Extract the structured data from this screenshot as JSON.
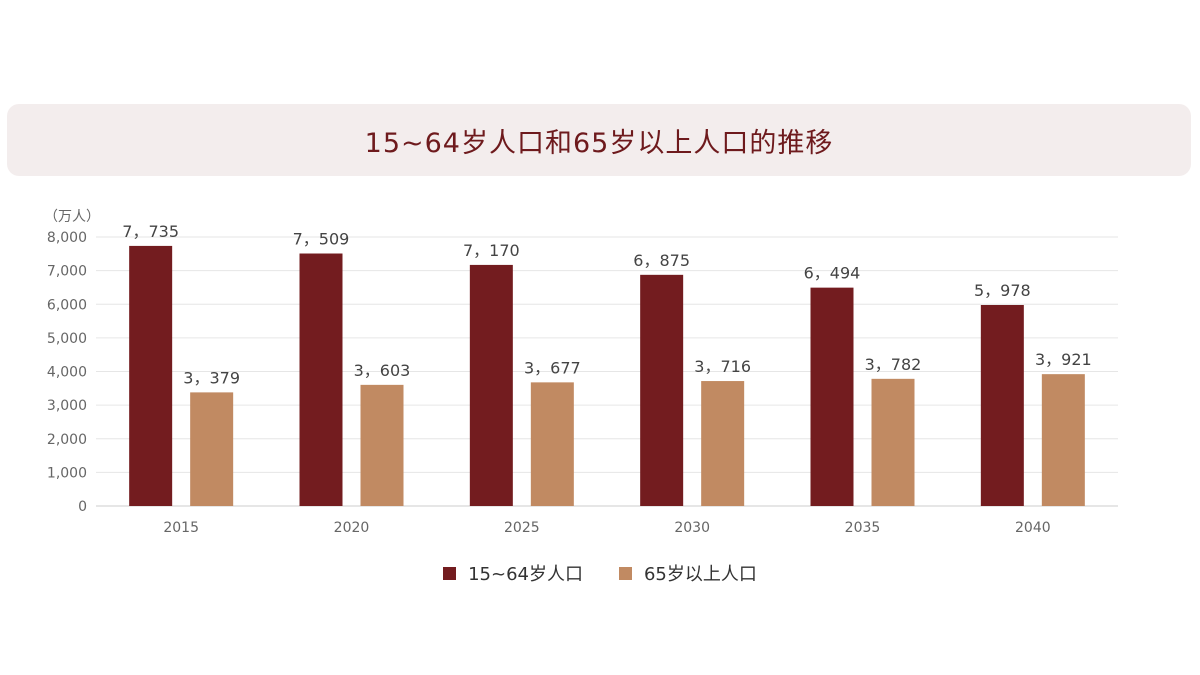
{
  "chart_data": {
    "type": "bar",
    "title": "15~64岁人口和65岁以上人口的推移",
    "unit": "（万人）",
    "categories": [
      "2015",
      "2020",
      "2025",
      "2030",
      "2035",
      "2040"
    ],
    "ylim": [
      0,
      8000
    ],
    "yticks": [
      0,
      1000,
      2000,
      3000,
      4000,
      5000,
      6000,
      7000,
      8000
    ],
    "ytick_labels": [
      "0",
      "1,000",
      "2,000",
      "3,000",
      "4,000",
      "5,000",
      "6,000",
      "7,000",
      "8,000"
    ],
    "grid": true,
    "legend_position": "bottom-center",
    "series": [
      {
        "name": "15~64岁人口",
        "color": "#731c1f",
        "values": [
          7735,
          7509,
          7170,
          6875,
          6494,
          5978
        ],
        "labels": [
          "7，735",
          "7，509",
          "7，170",
          "6，875",
          "6，494",
          "5，978"
        ]
      },
      {
        "name": "65岁以上人口",
        "color": "#c18a62",
        "values": [
          3379,
          3603,
          3677,
          3716,
          3782,
          3921
        ],
        "labels": [
          "3，379",
          "3，603",
          "3，677",
          "3，716",
          "3，782",
          "3，921"
        ]
      }
    ]
  }
}
